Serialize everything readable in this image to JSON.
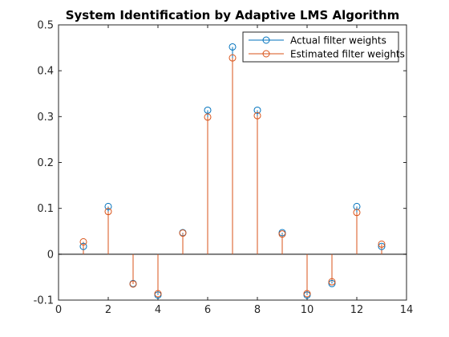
{
  "chart_data": {
    "type": "stem",
    "title": "System Identification by Adaptive LMS Algorithm",
    "xlabel": "",
    "ylabel": "",
    "xlim": [
      0,
      14
    ],
    "ylim": [
      -0.1,
      0.5
    ],
    "xticks": [
      0,
      2,
      4,
      6,
      8,
      10,
      12,
      14
    ],
    "yticks": [
      -0.1,
      0,
      0.1,
      0.2,
      0.3,
      0.4,
      0.5
    ],
    "x": [
      1,
      2,
      3,
      4,
      5,
      6,
      7,
      8,
      9,
      10,
      11,
      12,
      13
    ],
    "series": [
      {
        "name": "Actual filter weights",
        "color": "#0072BD",
        "values": [
          0.017,
          0.104,
          -0.064,
          -0.089,
          0.047,
          0.314,
          0.452,
          0.314,
          0.047,
          -0.089,
          -0.064,
          0.104,
          0.017
        ]
      },
      {
        "name": "Estimated filter weights",
        "color": "#D95319",
        "values": [
          0.027,
          0.093,
          -0.065,
          -0.086,
          0.046,
          0.299,
          0.428,
          0.302,
          0.044,
          -0.086,
          -0.06,
          0.091,
          0.022
        ]
      }
    ],
    "legend_position": "top-right",
    "grid": false,
    "baseline": 0
  }
}
